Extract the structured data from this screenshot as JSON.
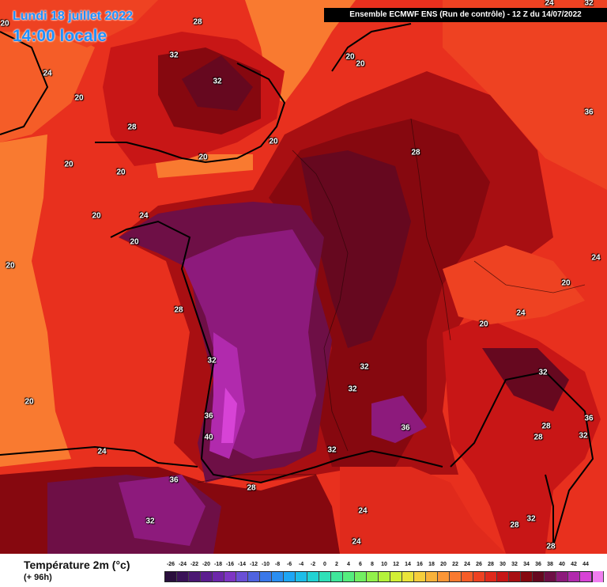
{
  "header": {
    "date": "Lundi 18 juillet 2022",
    "local_time": "14:00 locale",
    "model_run": "Ensemble ECMWF ENS  (Run de contrôle)  -  12 Z du 14/07/2022"
  },
  "legend": {
    "title": "Température 2m (°c)",
    "lead_time": "(+ 96h)",
    "ticks": [
      "-26",
      "-24",
      "-22",
      "-20",
      "-18",
      "-16",
      "-14",
      "-12",
      "-10",
      "-8",
      "-6",
      "-4",
      "-2",
      "0",
      "2",
      "4",
      "6",
      "8",
      "10",
      "12",
      "14",
      "16",
      "18",
      "20",
      "22",
      "24",
      "26",
      "28",
      "30",
      "32",
      "34",
      "36",
      "38",
      "40",
      "42",
      "44"
    ],
    "colors": [
      "#2a0f3d",
      "#3a1258",
      "#4b1773",
      "#5c1d8f",
      "#6d27aa",
      "#7e35c4",
      "#6a4fd6",
      "#4f63e0",
      "#3a78ea",
      "#2a8ef2",
      "#1ea6f5",
      "#1ebde8",
      "#22d3d3",
      "#2fe0b8",
      "#3fe79b",
      "#55ed7e",
      "#72f062",
      "#92f24b",
      "#b4f23b",
      "#d2ef36",
      "#eae43a",
      "#f6ce3c",
      "#f9b23a",
      "#fb9637",
      "#f97a30",
      "#f55d28",
      "#ee4222",
      "#e02a1c",
      "#c81616",
      "#a80f12",
      "#86080f",
      "#66081f",
      "#6e0f46",
      "#8d1a7c",
      "#b12aad",
      "#d743d6",
      "#f07ff0"
    ]
  },
  "map_labels": [
    {
      "text": "28"
    },
    {
      "text": "32"
    },
    {
      "text": "32"
    },
    {
      "text": "24"
    },
    {
      "text": "20"
    },
    {
      "text": "20"
    },
    {
      "text": "20"
    },
    {
      "text": "24"
    },
    {
      "text": "28"
    },
    {
      "text": "20"
    },
    {
      "text": "20"
    },
    {
      "text": "20"
    },
    {
      "text": "20"
    },
    {
      "text": "20"
    },
    {
      "text": "24"
    },
    {
      "text": "36"
    },
    {
      "text": "20"
    },
    {
      "text": "28"
    },
    {
      "text": "32"
    },
    {
      "text": "36"
    },
    {
      "text": "40"
    },
    {
      "text": "20"
    },
    {
      "text": "36"
    },
    {
      "text": "28"
    },
    {
      "text": "32"
    },
    {
      "text": "24"
    },
    {
      "text": "24"
    },
    {
      "text": "28"
    },
    {
      "text": "32"
    },
    {
      "text": "32"
    },
    {
      "text": "32"
    },
    {
      "text": "36"
    },
    {
      "text": "20"
    },
    {
      "text": "24"
    },
    {
      "text": "20"
    },
    {
      "text": "20"
    },
    {
      "text": "24"
    },
    {
      "text": "32"
    },
    {
      "text": "28"
    },
    {
      "text": "28"
    },
    {
      "text": "32"
    },
    {
      "text": "36"
    },
    {
      "text": "28"
    },
    {
      "text": "32"
    },
    {
      "text": "28"
    },
    {
      "text": "32"
    },
    {
      "text": "24"
    },
    {
      "text": "20"
    },
    {
      "text": "20"
    }
  ]
}
